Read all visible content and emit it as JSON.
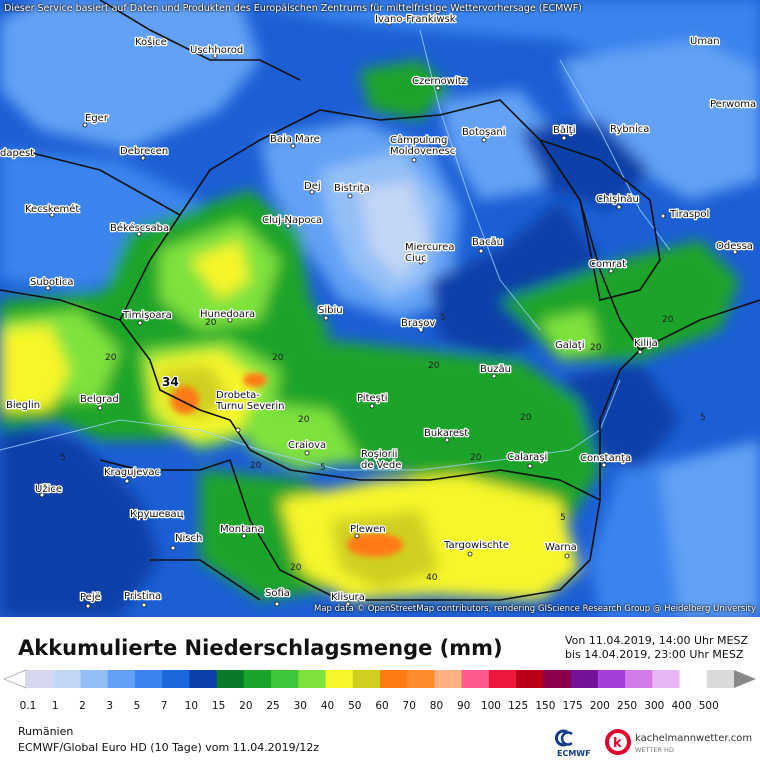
{
  "header": {
    "service_note": "Dieser Service basiert auf Daten und Produkten des Europäischen Zentrums für mittelfristige Wettervorhersage (ECMWF)"
  },
  "map": {
    "attribution": "Map data © OpenStreetMap contributors, rendering GIScience Research Group @ Heidelberg University",
    "cities": [
      "Ivano-Frankiwsk",
      "Košice",
      "Uschhorod",
      "Uman",
      "Czernowitz",
      "Perwoma",
      "Eger",
      "Baia Mare",
      "Câmpulung Moldovenesc",
      "Botoşani",
      "Bălţi",
      "Rybnica",
      "dapest",
      "Debrecen",
      "Dej",
      "Bistriţa",
      "Chişinău",
      "Kecskemét",
      "Cluj-Napoca",
      "Tiraspol",
      "Békéscsaba",
      "Miercurea Ciuc",
      "Bacău",
      "Odessa",
      "Comrat",
      "Subotica",
      "Timişoara",
      "Hunedoara",
      "Sibiu",
      "Braşov",
      "Galaţi",
      "Kilija",
      "Buzău",
      "Belgrad",
      "Drobeta-Turnu Severin",
      "Piteşti",
      "Craiova",
      "Bukarest",
      "Roşiorii de Vede",
      "Calaraşi",
      "Constanţa",
      "Kragujevac",
      "Užice",
      "Крушевац",
      "Plewen",
      "Targowischte",
      "Nisch",
      "Montana",
      "Warna",
      "Pejë",
      "Pristina",
      "Sofia",
      "Klisura",
      "Bieglin"
    ],
    "max_value_label": "34",
    "contour_labels": [
      "20",
      "5",
      "20",
      "5",
      "20",
      "20",
      "20",
      "20",
      "20",
      "20",
      "20",
      "20",
      "5",
      "20",
      "40",
      "5",
      "5"
    ]
  },
  "legend": {
    "title": "Akkumulierte Niederschlagsmenge (mm)",
    "from": "Von 11.04.2019, 14:00 Uhr MESZ",
    "to": "bis 14.04.2019, 23:00 Uhr MESZ",
    "levels": [
      "0.1",
      "1",
      "2",
      "3",
      "5",
      "7",
      "10",
      "15",
      "20",
      "25",
      "30",
      "40",
      "50",
      "60",
      "70",
      "80",
      "90",
      "100",
      "125",
      "150",
      "175",
      "200",
      "250",
      "300",
      "400",
      "500"
    ],
    "colors": [
      "#d6d6ee",
      "#c2d6f6",
      "#93bff6",
      "#62a1f5",
      "#3b84ee",
      "#1c68db",
      "#0c40a8",
      "#0a7a2a",
      "#1aa42a",
      "#3ec63a",
      "#7ee23c",
      "#f6f62a",
      "#cfcf20",
      "#ff7a12",
      "#ff8c2a",
      "#ffb080",
      "#ff5a8c",
      "#f0183c",
      "#b80018",
      "#8c004a",
      "#76129a",
      "#a63ed8",
      "#d27ae8",
      "#e8b6f4",
      "#ffffff",
      "#dadada"
    ],
    "region": "Rumänien",
    "model": "ECMWF/Global Euro HD (10 Tage) vom 11.04.2019/12z"
  },
  "logos": {
    "ecmwf": "ECMWF",
    "kachel_name": "kachelmannwetter.com",
    "kachel_sub": "WETTER HD"
  }
}
